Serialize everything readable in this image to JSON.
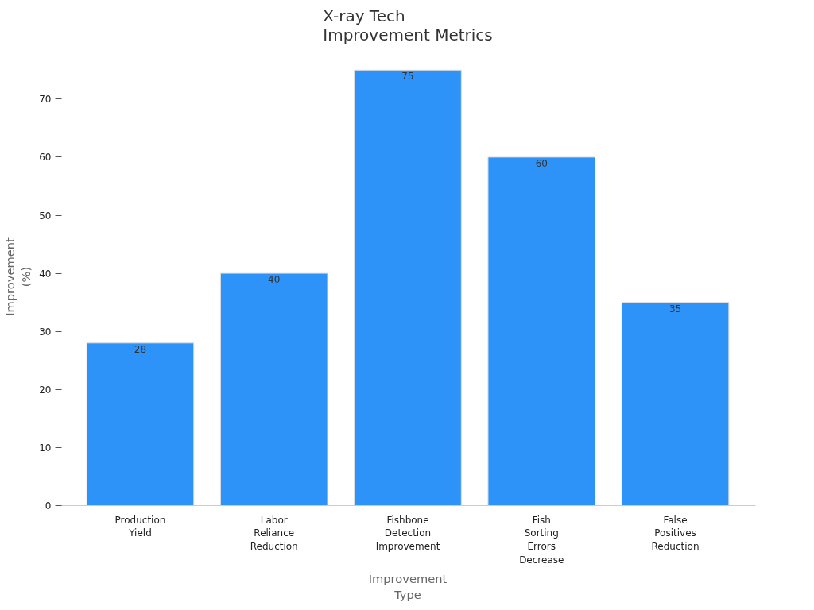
{
  "chart_data": {
    "type": "bar",
    "title": "X-ray Tech Improvement Metrics",
    "xlabel": "Improvement Type",
    "ylabel": "Improvement (%)",
    "categories": [
      "Production Yield",
      "Labor Reliance Reduction",
      "Fishbone Detection Improvement",
      "Fish Sorting Errors Decrease",
      "False Positives Reduction"
    ],
    "values": [
      28,
      40,
      75,
      60,
      35
    ],
    "color": "#2e93f8",
    "ylim": [
      0,
      78.8
    ],
    "yticks": [
      0,
      10,
      20,
      30,
      40,
      50,
      60,
      70
    ],
    "grid": false,
    "data_labels": true
  }
}
